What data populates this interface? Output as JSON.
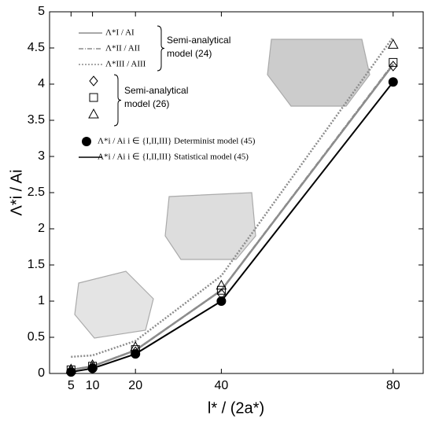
{
  "chart_data": {
    "type": "line",
    "x_label": "l* / (2a*)",
    "y_label": "Λ*i / Ai",
    "x": [
      5,
      10,
      20,
      40,
      80
    ],
    "xlim": [
      0,
      87
    ],
    "xticks": [
      5,
      10,
      20,
      40,
      80
    ],
    "ylim": [
      0,
      5
    ],
    "yticks": [
      0,
      0.5,
      1,
      1.5,
      2,
      2.5,
      3,
      3.5,
      4,
      4.5,
      5
    ],
    "series": [
      {
        "name": "Λ*I / AI",
        "color": "#8c8c8c",
        "line_style": "solid",
        "marker": "none",
        "values": [
          0.05,
          0.1,
          0.32,
          1.15,
          4.27
        ]
      },
      {
        "name": "Λ*II / AII",
        "color": "#8c8c8c",
        "line_style": "dashdot",
        "marker": "none",
        "values": [
          0.05,
          0.1,
          0.32,
          1.15,
          4.28
        ]
      },
      {
        "name": "Λ*III / AIII",
        "color": "#8c8c8c",
        "line_style": "dotted",
        "marker": "none",
        "values": [
          0.23,
          0.25,
          0.45,
          1.35,
          4.65
        ]
      },
      {
        "color": "#000000",
        "line_style": "none",
        "marker": "diamond",
        "values": [
          0.04,
          0.08,
          0.3,
          1.1,
          4.25
        ]
      },
      {
        "color": "#000000",
        "line_style": "none",
        "marker": "square",
        "values": [
          0.05,
          0.1,
          0.33,
          1.15,
          4.3
        ]
      },
      {
        "color": "#000000",
        "line_style": "none",
        "marker": "triangle",
        "values": [
          0.06,
          0.12,
          0.37,
          1.22,
          4.55
        ]
      },
      {
        "name": "Λ*i / Ai i ∈ {I,II,III} Determinist model (45)",
        "color": "#000000",
        "line_style": "none",
        "marker": "circle",
        "values": [
          0.02,
          0.07,
          0.27,
          1.0,
          4.03
        ]
      },
      {
        "name": "Λ*i / Ai i ∈ {I,II,III} Statistical model (45)",
        "color": "#000000",
        "line_style": "solid",
        "marker": "none",
        "values": [
          0.02,
          0.07,
          0.27,
          1.0,
          4.03
        ]
      }
    ],
    "legend_groups": [
      {
        "lines": [
          "Semi-analytical",
          "model (24)"
        ]
      },
      {
        "lines": [
          "Semi-analytical",
          "model (26)"
        ]
      }
    ]
  }
}
